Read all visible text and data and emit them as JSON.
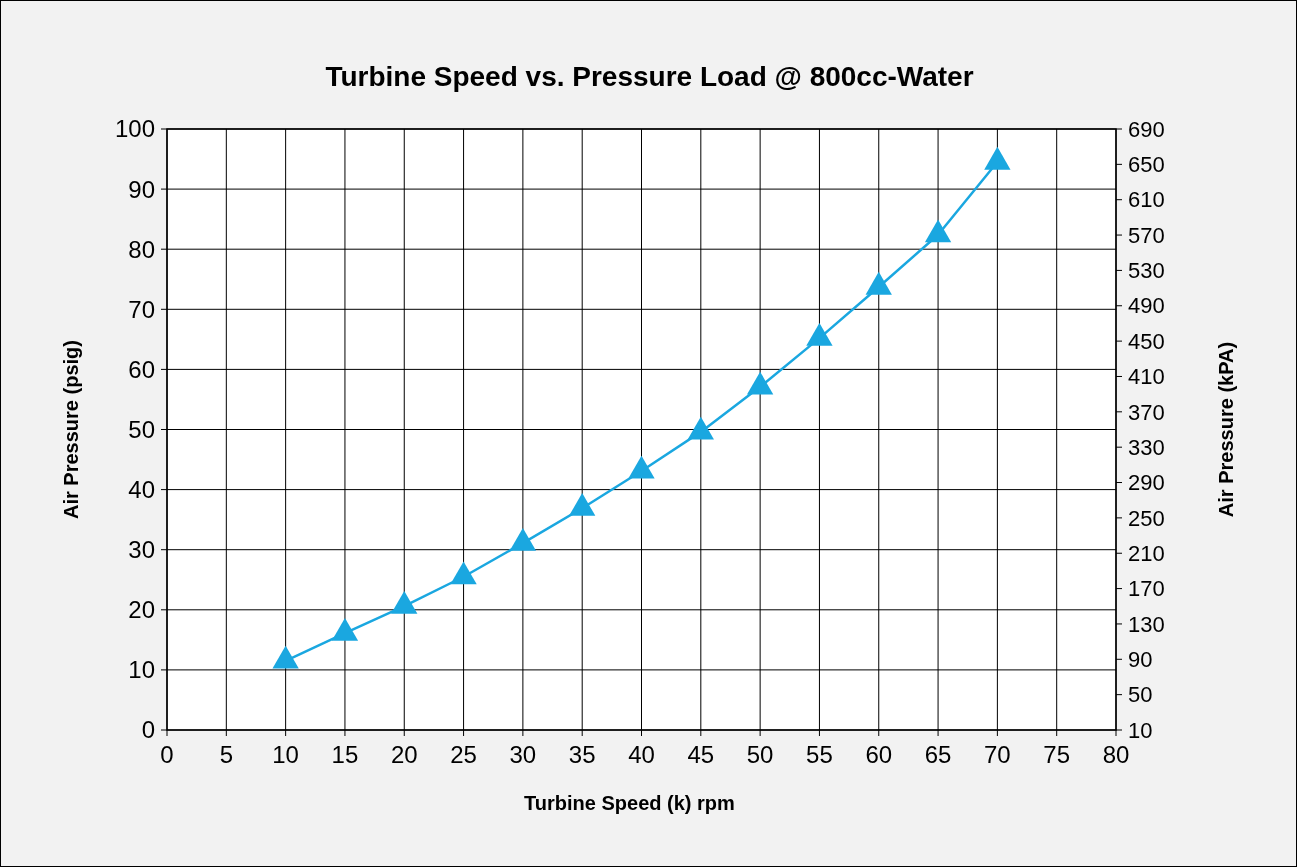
{
  "chart_data": {
    "type": "line",
    "title": "Turbine Speed vs. Pressure Load @ 800cc-Water",
    "xlabel": "Turbine Speed (k) rpm",
    "ylabel": "Air Pressure (psig)",
    "y2label": "Air Pressure (kPA)",
    "x": [
      10,
      15,
      20,
      25,
      30,
      35,
      40,
      45,
      50,
      55,
      60,
      65,
      70
    ],
    "series": [
      {
        "color": "#1aa7e0",
        "values": [
          11.5,
          16.1,
          20.6,
          25.5,
          31.1,
          36.9,
          43.1,
          49.6,
          57.1,
          65.2,
          73.7,
          82.4,
          94.5
        ]
      }
    ],
    "xlim": [
      0,
      80
    ],
    "xticks": [
      0,
      5,
      10,
      15,
      20,
      25,
      30,
      35,
      40,
      45,
      50,
      55,
      60,
      65,
      70,
      75,
      80
    ],
    "ylim": [
      0,
      100
    ],
    "yticks": [
      0,
      10,
      20,
      30,
      40,
      50,
      60,
      70,
      80,
      90,
      100
    ],
    "y2lim": [
      10,
      690
    ],
    "y2ticks": [
      10,
      50,
      90,
      130,
      170,
      210,
      250,
      290,
      330,
      370,
      410,
      450,
      490,
      530,
      570,
      610,
      650,
      690
    ],
    "grid": true,
    "marker": "triangle",
    "line_style": "solid"
  }
}
